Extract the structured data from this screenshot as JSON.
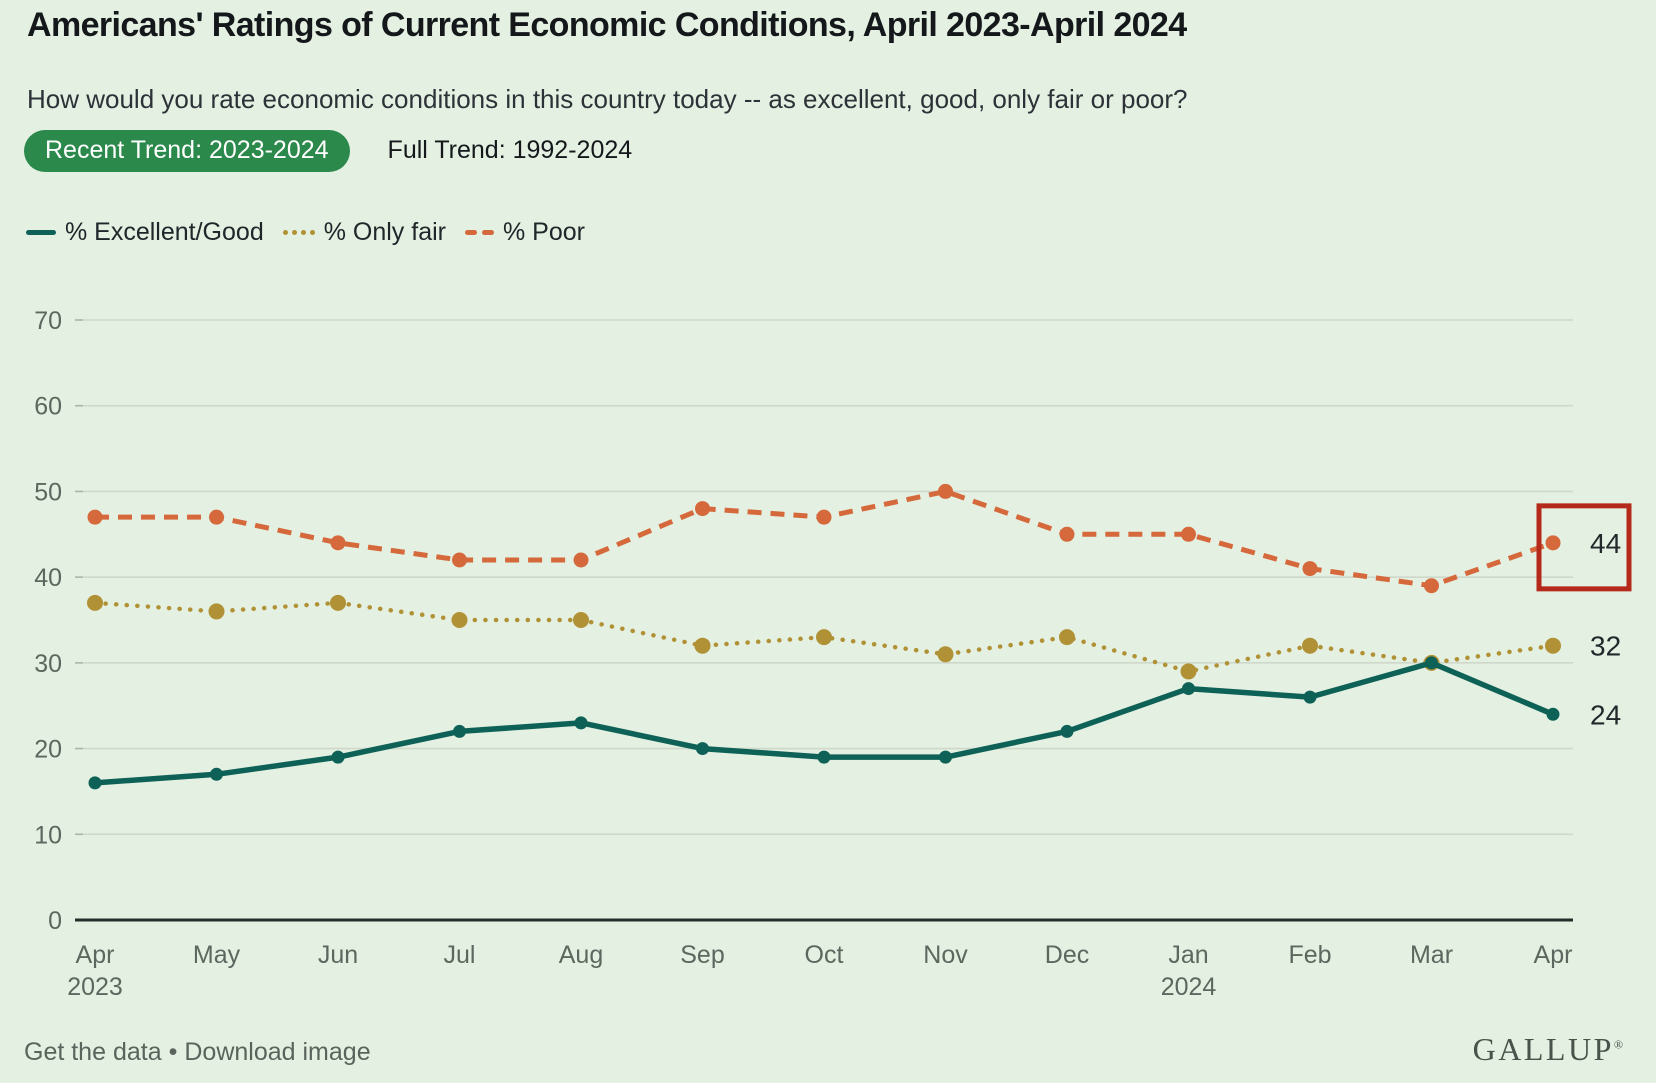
{
  "header": {
    "title": "Americans' Ratings of Current Economic Conditions, April 2023-April 2024",
    "subtitle": "How would you rate economic conditions in this country today -- as excellent, good, only fair or poor?",
    "tabs": [
      {
        "label": "Recent Trend: 2023-2024",
        "active": true
      },
      {
        "label": "Full Trend: 1992-2024",
        "active": false
      }
    ]
  },
  "colors": {
    "background": "#e4f0e1",
    "tab_active_bg": "#2b894c",
    "tab_active_text": "#ffffff",
    "excellent_good": "#0e6157",
    "only_fair": "#b19136",
    "poor": "#d5693c",
    "highlight_box": "#b5291b"
  },
  "legend": [
    {
      "label": "% Excellent/Good",
      "style": "solid"
    },
    {
      "label": "% Only fair",
      "style": "dotted"
    },
    {
      "label": "% Poor",
      "style": "dashed"
    }
  ],
  "chart_data": {
    "type": "line",
    "categories": [
      {
        "label": "Apr",
        "sublabel": "2023"
      },
      {
        "label": "May"
      },
      {
        "label": "Jun"
      },
      {
        "label": "Jul"
      },
      {
        "label": "Aug"
      },
      {
        "label": "Sep"
      },
      {
        "label": "Oct"
      },
      {
        "label": "Nov"
      },
      {
        "label": "Dec"
      },
      {
        "label": "Jan",
        "sublabel": "2024"
      },
      {
        "label": "Feb"
      },
      {
        "label": "Mar"
      },
      {
        "label": "Apr"
      }
    ],
    "series": [
      {
        "name": "% Excellent/Good",
        "style": "solid",
        "color": "#0e6157",
        "values": [
          16,
          17,
          19,
          22,
          23,
          20,
          19,
          19,
          22,
          27,
          26,
          30,
          24
        ],
        "end_label": "24"
      },
      {
        "name": "% Only fair",
        "style": "dotted",
        "color": "#b19136",
        "values": [
          37,
          36,
          37,
          35,
          35,
          32,
          33,
          31,
          33,
          29,
          32,
          30,
          32
        ],
        "end_label": "32"
      },
      {
        "name": "% Poor",
        "style": "dashed",
        "color": "#d5693c",
        "values": [
          47,
          47,
          44,
          42,
          42,
          48,
          47,
          50,
          45,
          45,
          41,
          39,
          44
        ],
        "end_label": "44",
        "highlight_last": true
      }
    ],
    "title": "Americans' Ratings of Current Economic Conditions, April 2023-April 2024",
    "xlabel": "",
    "ylabel": "",
    "ylim": [
      0,
      70
    ],
    "yticks": [
      0,
      10,
      20,
      30,
      40,
      50,
      60,
      70
    ],
    "grid": true,
    "legend_position": "top"
  },
  "footer": {
    "links": [
      "Get the data",
      "Download image"
    ],
    "separator": "•",
    "brand": "GALLUP",
    "brand_mark": "®"
  }
}
